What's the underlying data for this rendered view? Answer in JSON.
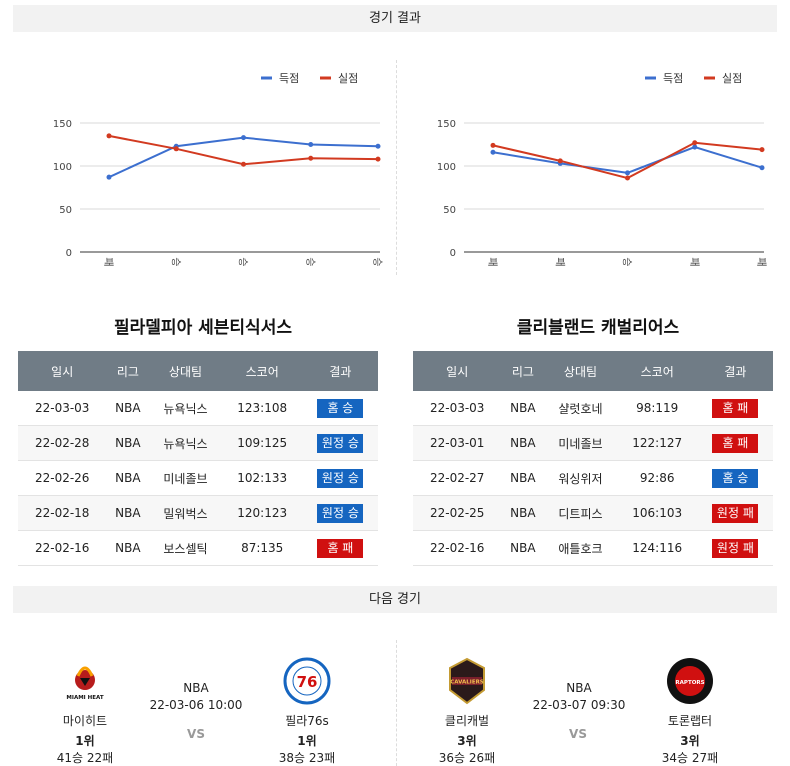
{
  "sections": {
    "results_title": "경기 결과",
    "next_title": "다음 경기"
  },
  "legend": {
    "scored": "득점",
    "conceded": "실점"
  },
  "colors": {
    "scored": "#3c6fcf",
    "conceded": "#d23a20",
    "win": "#1565c0",
    "loss": "#d01010"
  },
  "table_headers": [
    "일시",
    "리그",
    "상대팀",
    "스코어",
    "결과"
  ],
  "chart_data": [
    {
      "type": "line",
      "categories": [
        "패",
        "승",
        "승",
        "승",
        "승"
      ],
      "yticks": [
        0,
        50,
        100,
        150
      ],
      "ylim": [
        0,
        150
      ],
      "series": [
        {
          "name": "득점",
          "values": [
            87,
            123,
            133,
            125,
            123
          ]
        },
        {
          "name": "실점",
          "values": [
            135,
            120,
            102,
            109,
            108
          ]
        }
      ],
      "legend": "top-right"
    },
    {
      "type": "line",
      "categories": [
        "패",
        "패",
        "승",
        "패",
        "패"
      ],
      "yticks": [
        0,
        50,
        100,
        150
      ],
      "ylim": [
        0,
        150
      ],
      "series": [
        {
          "name": "득점",
          "values": [
            116,
            103,
            92,
            122,
            98
          ]
        },
        {
          "name": "실점",
          "values": [
            124,
            106,
            86,
            127,
            119
          ]
        }
      ],
      "legend": "top-right"
    }
  ],
  "teams": [
    {
      "name": "필라델피아 세븐티식서스",
      "games": [
        {
          "date": "22-03-03",
          "league": "NBA",
          "opponent": "뉴욕닉스",
          "score": "123:108",
          "result": "홈 승",
          "win": true
        },
        {
          "date": "22-02-28",
          "league": "NBA",
          "opponent": "뉴욕닉스",
          "score": "109:125",
          "result": "원정 승",
          "win": true
        },
        {
          "date": "22-02-26",
          "league": "NBA",
          "opponent": "미네졸브",
          "score": "102:133",
          "result": "원정 승",
          "win": true
        },
        {
          "date": "22-02-18",
          "league": "NBA",
          "opponent": "밀워벅스",
          "score": "120:123",
          "result": "원정 승",
          "win": true
        },
        {
          "date": "22-02-16",
          "league": "NBA",
          "opponent": "보스셀틱",
          "score": "87:135",
          "result": "홈 패",
          "win": false
        }
      ]
    },
    {
      "name": "클리블랜드 캐벌리어스",
      "games": [
        {
          "date": "22-03-03",
          "league": "NBA",
          "opponent": "샬럿호네",
          "score": "98:119",
          "result": "홈 패",
          "win": false
        },
        {
          "date": "22-03-01",
          "league": "NBA",
          "opponent": "미네졸브",
          "score": "122:127",
          "result": "홈 패",
          "win": false
        },
        {
          "date": "22-02-27",
          "league": "NBA",
          "opponent": "워싱위저",
          "score": "92:86",
          "result": "홈 승",
          "win": true
        },
        {
          "date": "22-02-25",
          "league": "NBA",
          "opponent": "디트피스",
          "score": "106:103",
          "result": "원정 패",
          "win": false
        },
        {
          "date": "22-02-16",
          "league": "NBA",
          "opponent": "애틀호크",
          "score": "124:116",
          "result": "원정 패",
          "win": false
        }
      ]
    }
  ],
  "next_games": [
    {
      "league": "NBA",
      "datetime": "22-03-06 10:00",
      "vs": "VS",
      "home": {
        "name": "마이히트",
        "rank": "1위",
        "record": "41승 22패",
        "logo_text": "MIAMI HEAT"
      },
      "away": {
        "name": "필라76s",
        "rank": "1위",
        "record": "38승 23패",
        "logo_text": "76"
      }
    },
    {
      "league": "NBA",
      "datetime": "22-03-07 09:30",
      "vs": "VS",
      "home": {
        "name": "클리캐벌",
        "rank": "3위",
        "record": "36승 26패",
        "logo_text": "CAVALIERS"
      },
      "away": {
        "name": "토론랩터",
        "rank": "3위",
        "record": "34승 27패",
        "logo_text": "RAPTORS"
      }
    }
  ]
}
